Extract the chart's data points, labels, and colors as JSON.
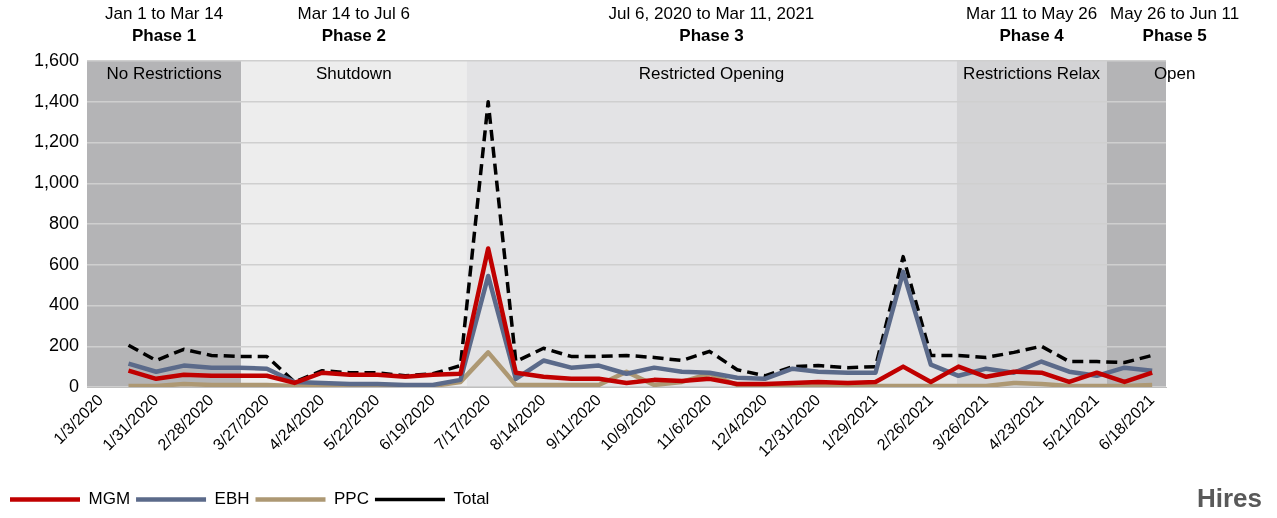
{
  "chart_data": {
    "type": "line",
    "x": [
      "2020-01-17",
      "2020-01-31",
      "2020-02-14",
      "2020-02-28",
      "2020-03-13",
      "2020-03-27",
      "2020-04-10",
      "2020-04-24",
      "2020-05-08",
      "2020-05-22",
      "2020-06-05",
      "2020-06-19",
      "2020-07-03",
      "2020-07-17",
      "2020-07-31",
      "2020-08-14",
      "2020-08-28",
      "2020-09-11",
      "2020-09-25",
      "2020-10-09",
      "2020-10-23",
      "2020-11-06",
      "2020-11-20",
      "2020-12-04",
      "2020-12-18",
      "2020-12-31",
      "2021-01-15",
      "2021-01-29",
      "2021-02-12",
      "2021-02-26",
      "2021-03-12",
      "2021-03-26",
      "2021-04-09",
      "2021-04-23",
      "2021-05-07",
      "2021-05-21",
      "2021-06-04",
      "2021-06-18"
    ],
    "series": [
      {
        "name": "MGM",
        "color": "#c00000",
        "values": [
          80,
          40,
          60,
          55,
          55,
          55,
          20,
          70,
          60,
          60,
          50,
          60,
          65,
          680,
          70,
          50,
          40,
          40,
          20,
          35,
          30,
          40,
          15,
          15,
          20,
          25,
          20,
          25,
          100,
          25,
          100,
          50,
          75,
          70,
          25,
          70,
          25,
          70
        ]
      },
      {
        "name": "EBH",
        "color": "#5b6a8a",
        "values": [
          115,
          75,
          105,
          95,
          95,
          90,
          25,
          20,
          15,
          15,
          10,
          10,
          35,
          545,
          40,
          130,
          95,
          105,
          65,
          95,
          75,
          70,
          45,
          40,
          90,
          75,
          70,
          70,
          565,
          110,
          55,
          90,
          70,
          125,
          75,
          55,
          95,
          80
        ]
      },
      {
        "name": "PPC",
        "color": "#ad9873",
        "values": [
          5,
          5,
          15,
          10,
          10,
          10,
          5,
          5,
          5,
          5,
          5,
          5,
          25,
          170,
          10,
          10,
          10,
          10,
          75,
          10,
          25,
          65,
          10,
          10,
          5,
          10,
          5,
          5,
          5,
          5,
          5,
          5,
          20,
          15,
          5,
          5,
          5,
          10
        ]
      },
      {
        "name": "Total",
        "color": "#000000",
        "line_style": "dashed",
        "values": [
          205,
          130,
          185,
          155,
          150,
          150,
          25,
          80,
          70,
          70,
          55,
          65,
          105,
          1400,
          125,
          190,
          150,
          150,
          155,
          145,
          130,
          175,
          85,
          55,
          100,
          105,
          95,
          100,
          640,
          155,
          155,
          145,
          170,
          200,
          125,
          125,
          120,
          155
        ]
      }
    ],
    "xlim": [
      "2019-12-27",
      "2021-06-25"
    ],
    "xticks": [
      {
        "value": "2020-01-03",
        "label": "1/3/2020"
      },
      {
        "value": "2020-01-31",
        "label": "1/31/2020"
      },
      {
        "value": "2020-02-28",
        "label": "2/28/2020"
      },
      {
        "value": "2020-03-27",
        "label": "3/27/2020"
      },
      {
        "value": "2020-04-24",
        "label": "4/24/2020"
      },
      {
        "value": "2020-05-22",
        "label": "5/22/2020"
      },
      {
        "value": "2020-06-19",
        "label": "6/19/2020"
      },
      {
        "value": "2020-07-17",
        "label": "7/17/2020"
      },
      {
        "value": "2020-08-14",
        "label": "8/14/2020"
      },
      {
        "value": "2020-09-11",
        "label": "9/11/2020"
      },
      {
        "value": "2020-10-09",
        "label": "10/9/2020"
      },
      {
        "value": "2020-11-06",
        "label": "11/6/2020"
      },
      {
        "value": "2020-12-04",
        "label": "12/4/2020"
      },
      {
        "value": "2020-12-31",
        "label": "12/31/2020"
      },
      {
        "value": "2021-01-29",
        "label": "1/29/2021"
      },
      {
        "value": "2021-02-26",
        "label": "2/26/2021"
      },
      {
        "value": "2021-03-26",
        "label": "3/26/2021"
      },
      {
        "value": "2021-04-23",
        "label": "4/23/2021"
      },
      {
        "value": "2021-05-21",
        "label": "5/21/2021"
      },
      {
        "value": "2021-06-18",
        "label": "6/18/2021"
      }
    ],
    "ylim": [
      0,
      1600
    ],
    "yticks": [
      0,
      200,
      400,
      600,
      800,
      {
        "value": 1000,
        "label": "1,000"
      },
      {
        "value": 1200,
        "label": "1,200"
      },
      {
        "value": 1400,
        "label": "1,400"
      },
      {
        "value": 1600,
        "label": "1,600"
      }
    ],
    "grid": "y",
    "marker": "none",
    "line_style": "solid",
    "legend": "bottom left",
    "bands": [
      {
        "axis": "x",
        "from": "2019-12-27",
        "to": "2020-03-14",
        "label": "Phase 1",
        "color": "#b4b4b6"
      },
      {
        "axis": "x",
        "from": "2020-03-14",
        "to": "2020-07-06",
        "label": "Phase 2",
        "color": "#ededed"
      },
      {
        "axis": "x",
        "from": "2020-07-06",
        "to": "2021-03-11",
        "label": "Phase 3",
        "color": "#e3e3e5"
      },
      {
        "axis": "x",
        "from": "2021-03-11",
        "to": "2021-05-26",
        "label": "Phase 4",
        "color": "#d3d3d5"
      },
      {
        "axis": "x",
        "from": "2021-05-26",
        "to": "2021-06-25",
        "label": "Phase 5",
        "color": "#b4b4b6"
      }
    ],
    "annotations": [
      "Jan 1 to Mar 14",
      "No Restrictions",
      "Mar 14 to Jul 6",
      "Shutdown",
      "Jul 6, 2020 to Mar 11, 2021",
      "Restricted Opening",
      "Mar 11 to May 26",
      "Restrictions Relax",
      "May 26 to Jun 11",
      "Open",
      "Hires"
    ]
  }
}
